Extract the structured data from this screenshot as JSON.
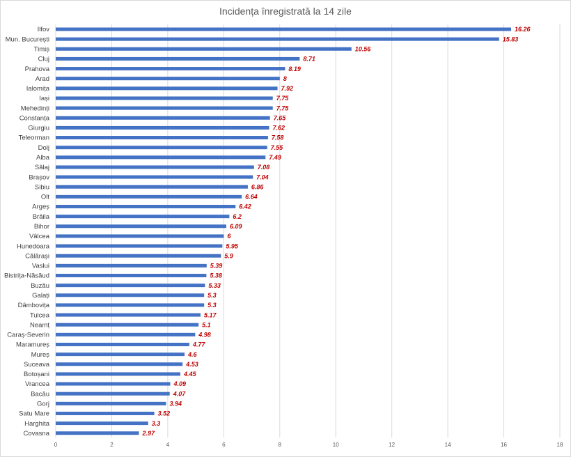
{
  "chart_data": {
    "type": "bar",
    "orientation": "horizontal",
    "title": "Incidența  înregistrată la 14 zile",
    "xlabel": "",
    "ylabel": "",
    "xlim": [
      0,
      18
    ],
    "xticks": [
      0,
      2,
      4,
      6,
      8,
      10,
      12,
      14,
      16,
      18
    ],
    "grid": "vertical",
    "legend": "none",
    "colors": {
      "bar": "#4472c4",
      "value_label": "#c00000",
      "grid": "#d9d9d9"
    },
    "categories": [
      "Ilfov",
      "Mun. București",
      "Timiș",
      "Cluj",
      "Prahova",
      "Arad",
      "Ialomița",
      "Iași",
      "Mehedinți",
      "Constanța",
      "Giurgiu",
      "Teleorman",
      "Dolj",
      "Alba",
      "Sălaj",
      "Brașov",
      "Sibiu",
      "Olt",
      "Argeș",
      "Brăila",
      "Bihor",
      "Vâlcea",
      "Hunedoara",
      "Călărași",
      "Vaslui",
      "Bistrița-Năsăud",
      "Buzău",
      "Galați",
      "Dâmbovița",
      "Tulcea",
      "Neamț",
      "Caraș-Severin",
      "Maramureș",
      "Mureș",
      "Suceava",
      "Botoșani",
      "Vrancea",
      "Bacău",
      "Gorj",
      "Satu Mare",
      "Harghita",
      "Covasna"
    ],
    "values": [
      16.26,
      15.83,
      10.56,
      8.71,
      8.19,
      8,
      7.92,
      7.75,
      7.75,
      7.65,
      7.62,
      7.58,
      7.55,
      7.49,
      7.08,
      7.04,
      6.86,
      6.64,
      6.42,
      6.2,
      6.09,
      6,
      5.95,
      5.9,
      5.39,
      5.38,
      5.33,
      5.3,
      5.3,
      5.17,
      5.1,
      4.98,
      4.77,
      4.6,
      4.53,
      4.45,
      4.09,
      4.07,
      3.94,
      3.52,
      3.3,
      2.97
    ]
  }
}
